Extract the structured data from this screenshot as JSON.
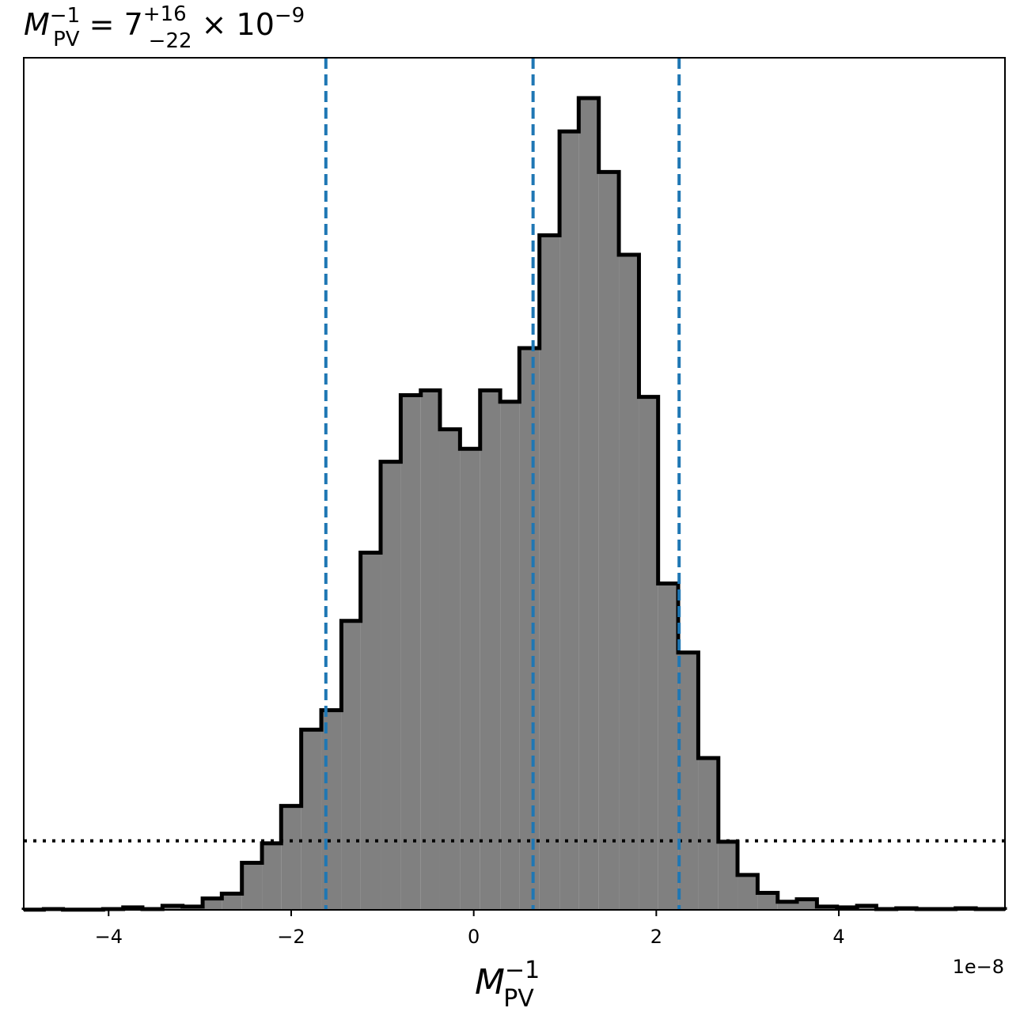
{
  "chart_data": {
    "type": "histogram",
    "title": {
      "base": "M",
      "sup": "−1",
      "sub": "PV",
      "equals": " = 7",
      "upper": "+16",
      "lower": "−22",
      "times": " × 10",
      "exp": "−9"
    },
    "xlabel": {
      "base": "M",
      "sup": "−1",
      "sub": "PV"
    },
    "offset_label": "1e−8",
    "xlim": [
      -4.93,
      5.82
    ],
    "ylim": [
      0,
      1.0
    ],
    "x_scale": "1e-8",
    "x_ticks": [
      -4,
      -2,
      0,
      2,
      4
    ],
    "x_tick_labels": [
      "−4",
      "−2",
      "0",
      "2",
      "4"
    ],
    "y_ticks_visible": false,
    "bin_edges": [
      -4.93,
      -4.71,
      -4.5,
      -4.28,
      -4.06,
      -3.84,
      -3.63,
      -3.41,
      -3.19,
      -2.97,
      -2.76,
      -2.54,
      -2.32,
      -2.11,
      -1.89,
      -1.67,
      -1.45,
      -1.24,
      -1.02,
      -0.8,
      -0.58,
      -0.37,
      -0.15,
      0.07,
      0.29,
      0.5,
      0.72,
      0.94,
      1.15,
      1.37,
      1.59,
      1.81,
      2.02,
      2.24,
      2.46,
      2.68,
      2.89,
      3.11,
      3.33,
      3.54,
      3.76,
      3.98,
      4.2,
      4.41,
      4.63,
      4.85,
      5.07,
      5.28,
      5.5,
      5.72,
      5.82
    ],
    "counts": [
      0.0003,
      0.001,
      0.0003,
      0.0003,
      0.001,
      0.003,
      0.001,
      0.005,
      0.004,
      0.014,
      0.02,
      0.058,
      0.082,
      0.128,
      0.222,
      0.246,
      0.356,
      0.44,
      0.552,
      0.634,
      0.64,
      0.592,
      0.568,
      0.64,
      0.626,
      0.692,
      0.831,
      0.959,
      1.0,
      0.909,
      0.807,
      0.632,
      0.402,
      0.317,
      0.187,
      0.084,
      0.043,
      0.021,
      0.01,
      0.013,
      0.004,
      0.003,
      0.005,
      0.001,
      0.002,
      0.001,
      0.001,
      0.002,
      0.001,
      0.001
    ],
    "fill_color": "#808080",
    "edge_color": "#000000",
    "quantile_lines": {
      "x": [
        -1.62,
        0.65,
        2.25
      ],
      "color": "#1f77b4",
      "style": "dashed"
    },
    "reference_line": {
      "y": 0.085,
      "color": "#000000",
      "style": "dotted"
    },
    "grid": false,
    "legend": "none"
  }
}
